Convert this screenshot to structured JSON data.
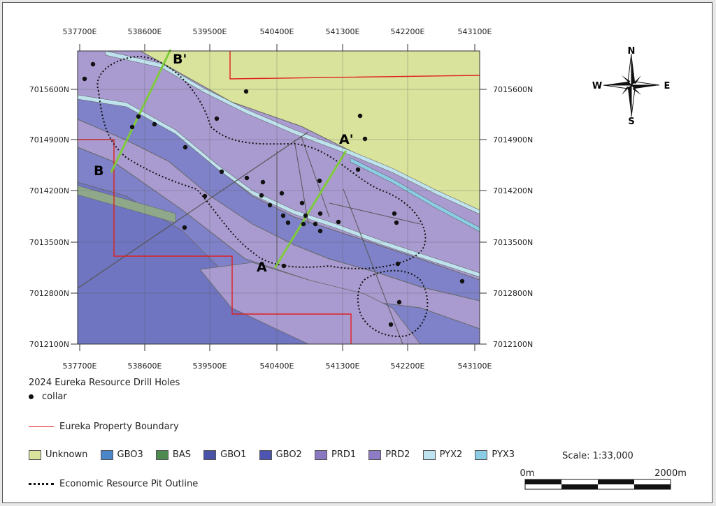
{
  "map": {
    "x_ticks": [
      "537700E",
      "538600E",
      "539500E",
      "540400E",
      "541300E",
      "542200E",
      "543100E"
    ],
    "y_ticks": [
      "7015600N",
      "7014900N",
      "7014200N",
      "7013500N",
      "7012800N",
      "7012100N"
    ],
    "sections": {
      "a": "A",
      "a_prime": "A'",
      "b": "B",
      "b_prime": "B'"
    },
    "compass": {
      "n": "N",
      "s": "S",
      "e": "E",
      "w": "W"
    }
  },
  "legend": {
    "drill_title": "2024 Eureka Resource Drill Holes",
    "collar": "collar",
    "boundary": "Eureka Property Boundary",
    "units": [
      {
        "name": "Unknown",
        "color": "#d9e39b"
      },
      {
        "name": "GBO3",
        "color": "#4a86c8"
      },
      {
        "name": "BAS",
        "color": "#4f8a52"
      },
      {
        "name": "GBO1",
        "color": "#4a52a8"
      },
      {
        "name": "GBO2",
        "color": "#4d55b0"
      },
      {
        "name": "PRD1",
        "color": "#8a78c0"
      },
      {
        "name": "PRD2",
        "color": "#8e7cc4"
      },
      {
        "name": "PYX2",
        "color": "#bfe3ee"
      },
      {
        "name": "PYX3",
        "color": "#8ccde6"
      }
    ],
    "pit": "Economic Resource Pit Outline"
  },
  "scale": {
    "label": "Scale: 1:33,000",
    "start": "0m",
    "end": "2000m"
  }
}
